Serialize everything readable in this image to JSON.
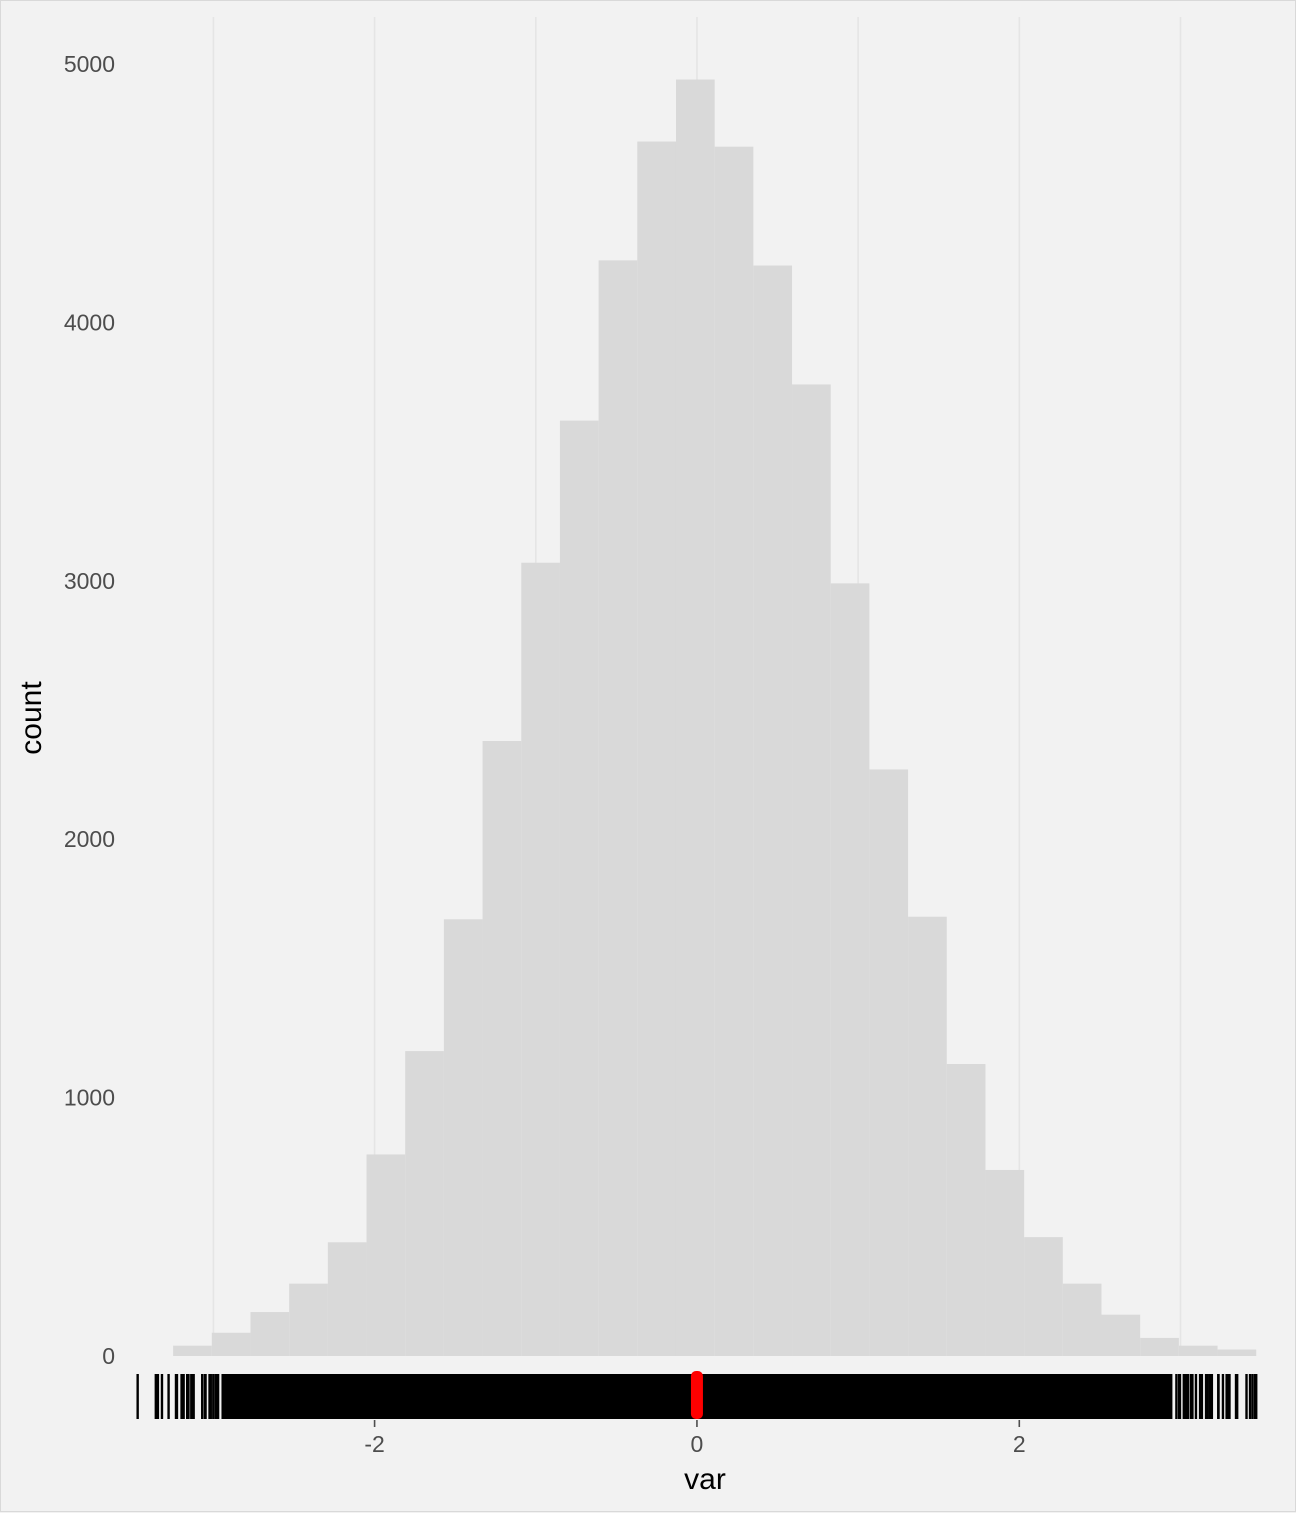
{
  "chart_data": {
    "type": "histogram",
    "xlabel": "var",
    "ylabel": "count",
    "xlim": [
      -3.35,
      3.45
    ],
    "ylim": [
      0,
      5000
    ],
    "x_ticks": [
      -2,
      0,
      2
    ],
    "x_tick_labels": [
      "-2",
      "0",
      "2"
    ],
    "y_ticks": [
      0,
      1000,
      2000,
      3000,
      4000,
      5000
    ],
    "y_tick_labels": [
      "0",
      "1000",
      "2000",
      "3000",
      "4000",
      "5000"
    ],
    "grid": "vertical",
    "bin_edges": [
      -3.25,
      -3.01,
      -2.77,
      -2.53,
      -2.29,
      -2.05,
      -1.81,
      -1.57,
      -1.33,
      -1.09,
      -0.85,
      -0.61,
      -0.37,
      -0.13,
      0.11,
      0.35,
      0.59,
      0.83,
      1.07,
      1.31,
      1.55,
      1.79,
      2.03,
      2.27,
      2.51,
      2.75,
      2.99,
      3.23,
      3.47
    ],
    "counts": [
      40,
      90,
      170,
      280,
      440,
      780,
      1180,
      1690,
      2380,
      3070,
      3620,
      4240,
      4700,
      4940,
      4680,
      4220,
      3760,
      2990,
      2270,
      1700,
      1130,
      720,
      460,
      280,
      160,
      70,
      40,
      25
    ],
    "bar_color": "#d9d9d9",
    "rug": {
      "color": "#000000",
      "range": [
        -3.47,
        3.47
      ],
      "highlight": {
        "value": 0.0,
        "color": "#ff0000"
      }
    },
    "colors": {
      "background": "#f2f2f2",
      "grid": "#e5e5e5",
      "tick_text": "#4d4d4d"
    }
  }
}
